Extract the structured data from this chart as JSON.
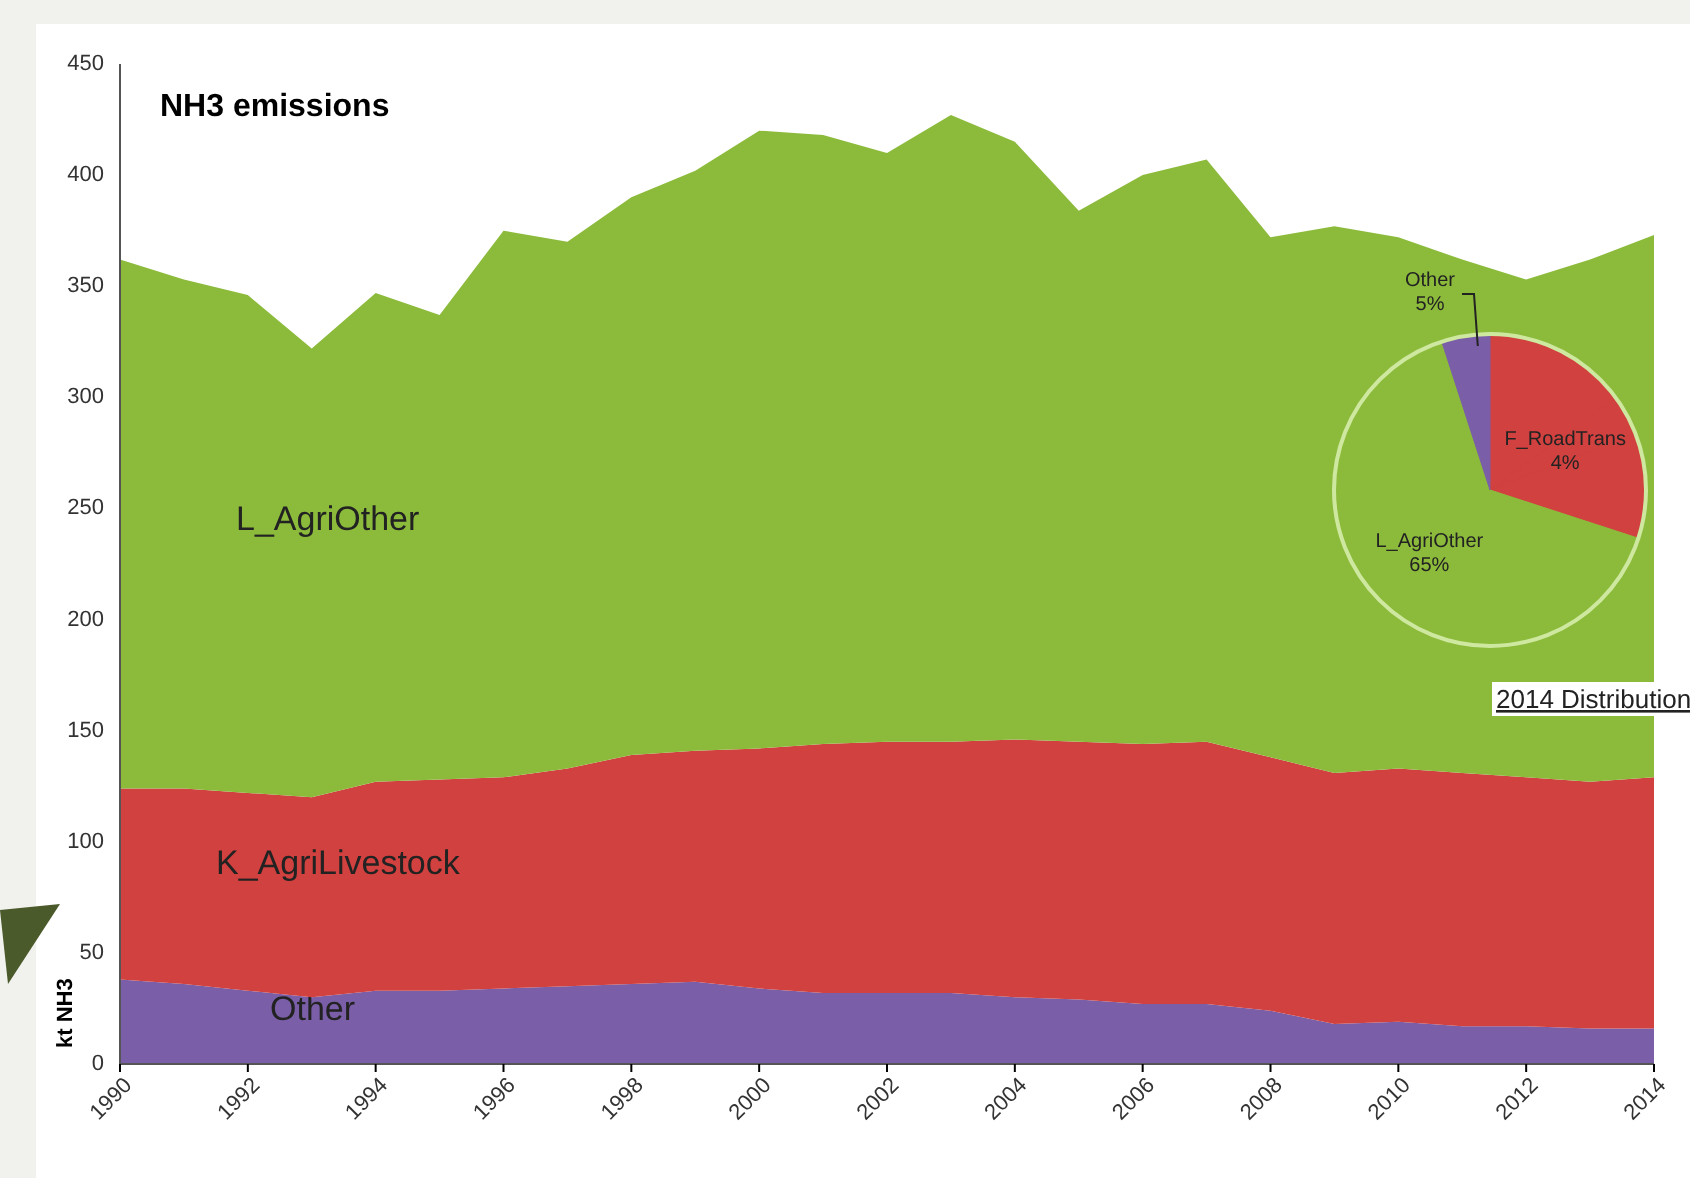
{
  "chart_data": [
    {
      "type": "area",
      "title": "NH3 emissions",
      "ylabel": "kt NH3",
      "stacked": true,
      "x": [
        1990,
        1991,
        1992,
        1993,
        1994,
        1995,
        1996,
        1997,
        1998,
        1999,
        2000,
        2001,
        2002,
        2003,
        2004,
        2005,
        2006,
        2007,
        2008,
        2009,
        2010,
        2011,
        2012,
        2013,
        2014
      ],
      "xlim": [
        1990,
        2014
      ],
      "xticks": [
        1990,
        1992,
        1994,
        1996,
        1998,
        2000,
        2002,
        2004,
        2006,
        2008,
        2010,
        2012,
        2014
      ],
      "ylim": [
        0,
        450
      ],
      "yticks": [
        0,
        50,
        100,
        150,
        200,
        250,
        300,
        350,
        400,
        450
      ],
      "series": [
        {
          "name": "Other",
          "color": "#7b5ea8",
          "values": [
            38,
            36,
            33,
            30,
            33,
            33,
            34,
            35,
            36,
            37,
            34,
            32,
            32,
            32,
            30,
            29,
            27,
            27,
            24,
            18,
            19,
            17,
            17,
            16,
            16
          ]
        },
        {
          "name": "K_AgriLivestock",
          "color": "#d0413f",
          "values": [
            86,
            88,
            89,
            90,
            94,
            95,
            95,
            98,
            103,
            104,
            108,
            112,
            113,
            113,
            116,
            116,
            117,
            118,
            114,
            113,
            114,
            114,
            112,
            111,
            113
          ]
        },
        {
          "name": "L_AgriOther",
          "color": "#8cbb3c",
          "values": [
            238,
            229,
            224,
            202,
            220,
            209,
            246,
            237,
            251,
            261,
            278,
            274,
            265,
            282,
            269,
            239,
            256,
            262,
            234,
            246,
            239,
            231,
            224,
            235,
            244
          ]
        }
      ],
      "legend": false,
      "grid": false
    },
    {
      "type": "pie",
      "title": "2014 Distribution",
      "categories": [
        null,
        "F_RoadTrans",
        null,
        "L_AgriOther",
        "Other"
      ],
      "values": [
        15,
        4,
        11,
        65,
        5
      ],
      "value_labels": [
        null,
        "4%",
        null,
        "65%",
        "5%"
      ],
      "colors": [
        "#d0413f",
        "#d0413f",
        "#d0413f",
        "#8cbb3c",
        "#7b5ea8"
      ]
    }
  ]
}
